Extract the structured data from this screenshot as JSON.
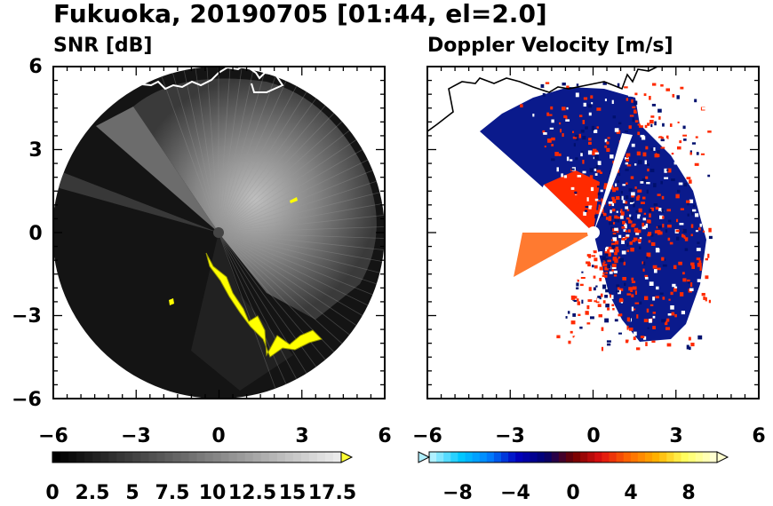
{
  "title": "Fukuoka, 20190705 [01:44, el=2.0]",
  "chart_data": [
    {
      "type": "heatmap",
      "title": "SNR [dB]",
      "variable": "SNR",
      "units": "dB",
      "projection": "polar PPI",
      "xlim": [
        -6,
        6
      ],
      "ylim": [
        -6,
        6
      ],
      "x_ticks": [
        "−6",
        "−3",
        "0",
        "3",
        "6"
      ],
      "y_ticks": [
        "6",
        "3",
        "0",
        "−3",
        "−6"
      ],
      "range_limit": 6,
      "colorbar": {
        "min": 0,
        "max": 18,
        "extend": "max",
        "colors": [
          "#000000",
          "#ffffff"
        ],
        "extend_color": "#ffff33",
        "ticks": [
          "0",
          "2.5",
          "5",
          "7.5",
          "10",
          "12.5",
          "15",
          "17.5"
        ]
      },
      "coastline_color": "#ffffff",
      "highlight_color": "#ffff00"
    },
    {
      "type": "heatmap",
      "title": "Doppler Velocity [m/s]",
      "variable": "Doppler Velocity",
      "units": "m/s",
      "projection": "polar PPI",
      "xlim": [
        -6,
        6
      ],
      "ylim": [
        -6,
        6
      ],
      "x_ticks": [
        "−6",
        "−3",
        "0",
        "3",
        "6"
      ],
      "y_ticks": [],
      "colorbar": {
        "min": -10,
        "max": 10,
        "extend": "both",
        "colors": [
          "#b0f0ff",
          "#00c8ff",
          "#0080ff",
          "#0000c0",
          "#00006e",
          "#6e0000",
          "#e01010",
          "#ff6a00",
          "#ffb400",
          "#ffff60",
          "#ffffd0"
        ],
        "ticks": [
          "−8",
          "−4",
          "0",
          "4",
          "8"
        ]
      },
      "coastline_color": "#000000",
      "positive_color": "#ff2a00",
      "negative_color": "#001080"
    }
  ]
}
